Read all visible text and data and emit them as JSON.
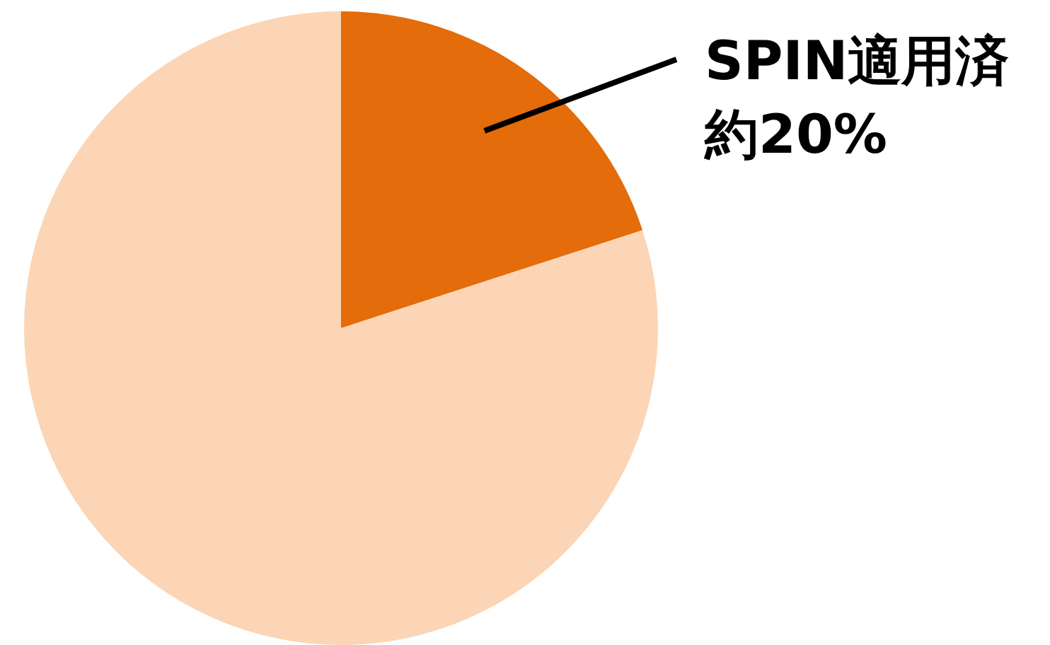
{
  "chart_data": {
    "type": "pie",
    "categories": [
      "SPIN適用済",
      null
    ],
    "values": [
      20,
      80
    ],
    "colors": [
      "#e46c0a",
      "#fbd5b5"
    ],
    "value_labels": [
      "約20%",
      null
    ],
    "legend": false
  }
}
